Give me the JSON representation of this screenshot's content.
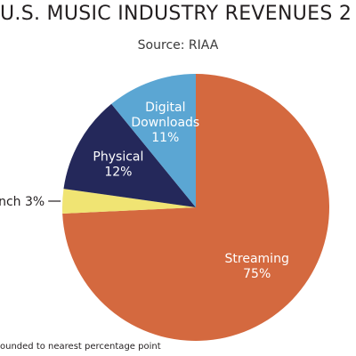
{
  "chart_data": {
    "type": "pie",
    "title": "U.S. MUSIC INDUSTRY REVENUES 2",
    "subtitle": "Source: RIAA",
    "footnote": "ounded to nearest percentage point",
    "start_angle_deg": 0,
    "direction": "clockwise",
    "slices": [
      {
        "label_lines": [
          "Streaming",
          "75%"
        ],
        "value": 75,
        "color": "#d4693f",
        "label_color": "#ffffff",
        "label_position": "inside"
      },
      {
        "label_lines": [
          "nch 3%"
        ],
        "value": 3,
        "color": "#f0e473",
        "label_color": "#231f20",
        "label_position": "outside"
      },
      {
        "label_lines": [
          "Physical",
          "12%"
        ],
        "value": 12,
        "color": "#24285a",
        "label_color": "#ffffff",
        "label_position": "inside"
      },
      {
        "label_lines": [
          "Digital",
          "Downloads",
          "11%"
        ],
        "value": 11,
        "color": "#5ba6d3",
        "label_color": "#ffffff",
        "label_position": "inside"
      }
    ],
    "colors": {
      "streaming": "#d4693f",
      "synch": "#f0e473",
      "physical": "#24285a",
      "digital_downloads": "#5ba6d3"
    }
  }
}
